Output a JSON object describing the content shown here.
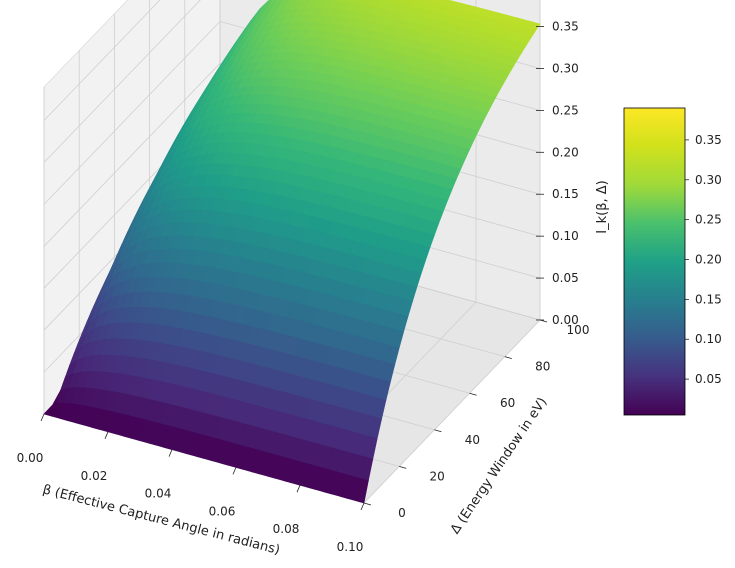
{
  "chart_data": {
    "type": "surface",
    "title": "",
    "xlabel": "β (Effective Capture Angle in radians)",
    "ylabel": "Δ (Energy Window in eV)",
    "zlabel": "I_k(β, Δ)",
    "x_ticks": [
      "0.00",
      "0.02",
      "0.04",
      "0.06",
      "0.08",
      "0.10"
    ],
    "y_ticks": [
      "0",
      "20",
      "40",
      "60",
      "80",
      "100"
    ],
    "z_ticks": [
      "0.00",
      "0.05",
      "0.10",
      "0.15",
      "0.20",
      "0.25",
      "0.30",
      "0.35"
    ],
    "xlim": [
      0,
      0.1
    ],
    "ylim": [
      0,
      100
    ],
    "zlim": [
      0,
      0.39
    ],
    "colormap": "viridis",
    "colorbar": {
      "range": [
        0.005,
        0.39
      ],
      "ticks": [
        "0.05",
        "0.10",
        "0.15",
        "0.20",
        "0.25",
        "0.30",
        "0.35"
      ]
    },
    "surface_samples": [
      {
        "x": 0.0,
        "y": 0,
        "z": 0.0
      },
      {
        "x": 0.1,
        "y": 0,
        "z": 0.0
      },
      {
        "x": 0.0,
        "y": 100,
        "z": 0.16
      },
      {
        "x": 0.02,
        "y": 100,
        "z": 0.31
      },
      {
        "x": 0.05,
        "y": 100,
        "z": 0.37
      },
      {
        "x": 0.1,
        "y": 100,
        "z": 0.39
      },
      {
        "x": 0.1,
        "y": 50,
        "z": 0.32
      },
      {
        "x": 0.1,
        "y": 20,
        "z": 0.2
      }
    ],
    "grid": true
  }
}
